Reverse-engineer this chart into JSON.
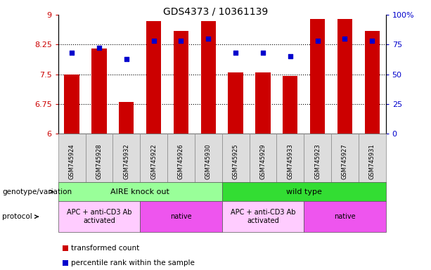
{
  "title": "GDS4373 / 10361139",
  "samples": [
    "GSM745924",
    "GSM745928",
    "GSM745932",
    "GSM745922",
    "GSM745926",
    "GSM745930",
    "GSM745925",
    "GSM745929",
    "GSM745933",
    "GSM745923",
    "GSM745927",
    "GSM745931"
  ],
  "bar_values": [
    7.5,
    8.15,
    6.8,
    8.85,
    8.6,
    8.85,
    7.55,
    7.55,
    7.45,
    8.9,
    8.9,
    8.6
  ],
  "dot_values": [
    68,
    72,
    63,
    78,
    78,
    80,
    68,
    68,
    65,
    78,
    80,
    78
  ],
  "ylim_left": [
    6,
    9
  ],
  "ylim_right": [
    0,
    100
  ],
  "yticks_left": [
    6,
    6.75,
    7.5,
    8.25,
    9
  ],
  "ytick_labels_left": [
    "6",
    "6.75",
    "7.5",
    "8.25",
    "9"
  ],
  "yticks_right": [
    0,
    25,
    50,
    75,
    100
  ],
  "ytick_labels_right": [
    "0",
    "25",
    "50",
    "75",
    "100%"
  ],
  "hlines": [
    6.75,
    7.5,
    8.25
  ],
  "bar_color": "#cc0000",
  "dot_color": "#0000cc",
  "bar_bottom": 6,
  "genotype_groups": [
    {
      "label": "AIRE knock out",
      "start": 0,
      "end": 6,
      "color": "#99ff99"
    },
    {
      "label": "wild type",
      "start": 6,
      "end": 12,
      "color": "#33dd33"
    }
  ],
  "protocol_groups": [
    {
      "label": "APC + anti-CD3 Ab\nactivated",
      "start": 0,
      "end": 3,
      "color": "#ffccff"
    },
    {
      "label": "native",
      "start": 3,
      "end": 6,
      "color": "#ee55ee"
    },
    {
      "label": "APC + anti-CD3 Ab\nactivated",
      "start": 6,
      "end": 9,
      "color": "#ffccff"
    },
    {
      "label": "native",
      "start": 9,
      "end": 12,
      "color": "#ee55ee"
    }
  ],
  "legend_red_label": "transformed count",
  "legend_blue_label": "percentile rank within the sample",
  "genotype_label": "genotype/variation",
  "protocol_label": "protocol",
  "tick_color_left": "#cc0000",
  "tick_color_right": "#0000cc",
  "bg_color": "#ffffff",
  "col_bg": "#dddddd"
}
